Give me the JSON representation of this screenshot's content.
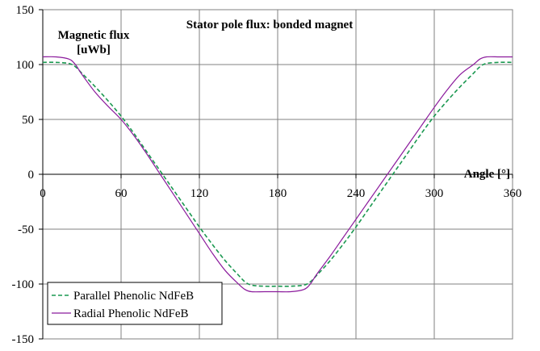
{
  "chart_data": {
    "type": "line",
    "title": "Stator pole flux: bonded magnet",
    "ylabel_line1": "Magnetic flux",
    "ylabel_line2": "[uWb]",
    "xlabel": "Angle [°]",
    "xlim": [
      0,
      360
    ],
    "ylim": [
      -150,
      150
    ],
    "x_ticks": [
      0,
      60,
      120,
      180,
      240,
      300,
      360
    ],
    "y_ticks": [
      150,
      100,
      50,
      0,
      -50,
      -100,
      -150
    ],
    "x_tick_labels": [
      "0",
      "60",
      "120",
      "180",
      "240",
      "300",
      "360"
    ],
    "y_tick_labels": [
      "150",
      "100",
      "50",
      "0",
      "-50",
      "-100",
      "-150"
    ],
    "grid": true,
    "legend_position": "bottom-left",
    "series": [
      {
        "name": "Parallel Phenolic NdFeB",
        "color": "#1a9850",
        "dash": "dashed",
        "x": [
          0,
          10,
          20,
          25,
          30,
          40,
          50,
          60,
          70,
          80,
          90,
          100,
          110,
          120,
          130,
          140,
          150,
          155,
          160,
          170,
          180,
          190,
          200,
          205,
          210,
          220,
          230,
          240,
          250,
          260,
          270,
          280,
          290,
          300,
          310,
          320,
          330,
          335,
          340,
          350,
          360
        ],
        "y": [
          102,
          102,
          101,
          98,
          92,
          80,
          67,
          53,
          37,
          20,
          3,
          -14,
          -31,
          -48,
          -64,
          -79,
          -92,
          -98,
          -101,
          -102,
          -102,
          -102,
          -101,
          -98,
          -92,
          -79,
          -64,
          -48,
          -31,
          -14,
          3,
          20,
          37,
          53,
          67,
          80,
          92,
          98,
          101,
          102,
          102
        ]
      },
      {
        "name": "Radial Phenolic NdFeB",
        "color": "#8b1a9c",
        "dash": "solid",
        "x": [
          0,
          10,
          20,
          25,
          30,
          40,
          50,
          60,
          70,
          80,
          90,
          100,
          110,
          120,
          130,
          140,
          150,
          155,
          160,
          170,
          180,
          190,
          200,
          205,
          210,
          220,
          230,
          240,
          250,
          260,
          270,
          280,
          290,
          300,
          310,
          320,
          330,
          335,
          340,
          350,
          360
        ],
        "y": [
          107,
          107,
          105,
          100,
          91,
          75,
          62,
          50,
          35,
          18,
          0,
          -18,
          -36,
          -54,
          -72,
          -88,
          -100,
          -105,
          -107,
          -107,
          -107,
          -107,
          -105,
          -100,
          -91,
          -75,
          -58,
          -41,
          -24,
          -7,
          10,
          27,
          44,
          61,
          77,
          91,
          100,
          105,
          107,
          107,
          107
        ]
      }
    ]
  }
}
